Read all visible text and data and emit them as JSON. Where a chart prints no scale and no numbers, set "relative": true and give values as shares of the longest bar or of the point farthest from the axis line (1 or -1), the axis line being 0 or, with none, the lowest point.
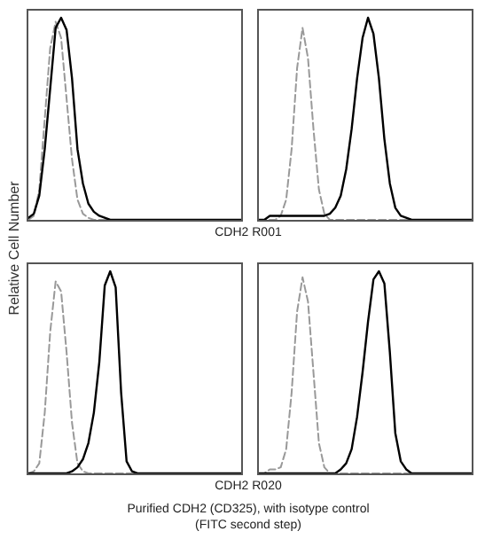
{
  "chart_data": [
    {
      "type": "line",
      "relative": true,
      "ylabel": "Relative Cell Number",
      "categories": [
        null,
        null,
        null,
        null,
        null,
        null,
        null,
        null,
        null,
        null,
        null,
        null,
        null,
        null,
        null,
        null,
        null,
        null,
        null,
        null,
        null,
        null,
        null,
        null,
        null,
        null,
        null,
        null,
        null,
        null,
        null,
        null,
        null,
        null,
        null,
        null,
        null,
        null,
        null,
        null
      ],
      "series": [
        {
          "color": "#999999",
          "line_style": "dashed",
          "values": [
            0,
            0.02,
            0.15,
            0.5,
            0.85,
            0.98,
            0.9,
            0.6,
            0.3,
            0.1,
            0.03,
            0.01,
            0,
            0,
            0,
            0,
            0,
            0,
            0,
            0,
            0,
            0,
            0,
            0,
            0,
            0,
            0,
            0,
            0,
            0,
            0,
            0,
            0,
            0,
            0,
            0,
            0,
            0,
            0,
            0
          ]
        },
        {
          "color": "#000000",
          "line_style": "solid",
          "values": [
            0.01,
            0.03,
            0.12,
            0.35,
            0.65,
            0.95,
            1,
            0.94,
            0.7,
            0.35,
            0.18,
            0.08,
            0.04,
            0.02,
            0.01,
            0,
            0,
            0,
            0,
            0,
            0,
            0,
            0,
            0,
            0,
            0,
            0,
            0,
            0,
            0,
            0,
            0,
            0,
            0,
            0,
            0,
            0,
            0,
            0,
            0
          ]
        }
      ]
    },
    {
      "type": "line",
      "relative": true,
      "xlabel": "CDH2 R001",
      "categories": [
        null,
        null,
        null,
        null,
        null,
        null,
        null,
        null,
        null,
        null,
        null,
        null,
        null,
        null,
        null,
        null,
        null,
        null,
        null,
        null,
        null,
        null,
        null,
        null,
        null,
        null,
        null,
        null,
        null,
        null,
        null,
        null,
        null,
        null,
        null,
        null,
        null,
        null,
        null,
        null
      ],
      "series": [
        {
          "color": "#999999",
          "line_style": "dashed",
          "values": [
            0,
            0,
            0,
            0,
            0.02,
            0.1,
            0.35,
            0.75,
            0.95,
            0.8,
            0.45,
            0.15,
            0.03,
            0,
            0,
            0,
            0,
            0,
            0,
            0,
            0,
            0,
            0,
            0,
            0,
            0,
            0,
            0,
            0,
            0,
            0,
            0,
            0,
            0,
            0,
            0,
            0,
            0,
            0,
            0
          ]
        },
        {
          "color": "#000000",
          "line_style": "solid",
          "values": [
            0,
            0,
            0.02,
            0.02,
            0.02,
            0.02,
            0.02,
            0.02,
            0.02,
            0.02,
            0.02,
            0.02,
            0.02,
            0.03,
            0.06,
            0.12,
            0.25,
            0.45,
            0.7,
            0.9,
            1,
            0.92,
            0.7,
            0.4,
            0.18,
            0.06,
            0.02,
            0.01,
            0,
            0,
            0,
            0,
            0,
            0,
            0,
            0,
            0,
            0,
            0,
            0
          ]
        }
      ]
    },
    {
      "type": "line",
      "relative": true,
      "categories": [
        null,
        null,
        null,
        null,
        null,
        null,
        null,
        null,
        null,
        null,
        null,
        null,
        null,
        null,
        null,
        null,
        null,
        null,
        null,
        null,
        null,
        null,
        null,
        null,
        null,
        null,
        null,
        null,
        null,
        null,
        null,
        null,
        null,
        null,
        null,
        null,
        null,
        null,
        null,
        null
      ],
      "series": [
        {
          "color": "#999999",
          "line_style": "dashed",
          "values": [
            0,
            0.01,
            0.05,
            0.3,
            0.7,
            0.95,
            0.9,
            0.6,
            0.25,
            0.05,
            0.01,
            0,
            0,
            0,
            0,
            0,
            0,
            0,
            0,
            0,
            0,
            0,
            0,
            0,
            0,
            0,
            0,
            0,
            0,
            0,
            0,
            0,
            0,
            0,
            0,
            0,
            0,
            0,
            0,
            0
          ]
        },
        {
          "color": "#000000",
          "line_style": "solid",
          "values": [
            0,
            0,
            0,
            0,
            0,
            0,
            0,
            0,
            0.01,
            0.03,
            0.07,
            0.15,
            0.3,
            0.55,
            0.93,
            1,
            0.92,
            0.4,
            0.06,
            0.01,
            0,
            0,
            0,
            0,
            0,
            0,
            0,
            0,
            0,
            0,
            0,
            0,
            0,
            0,
            0,
            0,
            0,
            0,
            0,
            0
          ]
        }
      ]
    },
    {
      "type": "line",
      "relative": true,
      "xlabel": "CDH2 R020",
      "annotations": [
        "Purified CDH2 (CD325), with isotype control",
        "(FITC second step)"
      ],
      "categories": [
        null,
        null,
        null,
        null,
        null,
        null,
        null,
        null,
        null,
        null,
        null,
        null,
        null,
        null,
        null,
        null,
        null,
        null,
        null,
        null,
        null,
        null,
        null,
        null,
        null,
        null,
        null,
        null,
        null,
        null,
        null,
        null,
        null,
        null,
        null,
        null,
        null,
        null,
        null,
        null
      ],
      "series": [
        {
          "color": "#999999",
          "line_style": "dashed",
          "values": [
            0,
            0,
            0.02,
            0.02,
            0.03,
            0.12,
            0.4,
            0.8,
            0.97,
            0.85,
            0.5,
            0.15,
            0.03,
            0,
            0,
            0,
            0,
            0,
            0,
            0,
            0,
            0,
            0,
            0,
            0,
            0,
            0,
            0,
            0,
            0,
            0,
            0,
            0,
            0,
            0,
            0,
            0,
            0,
            0,
            0
          ]
        },
        {
          "color": "#000000",
          "line_style": "solid",
          "values": [
            0,
            0,
            0,
            0,
            0,
            0,
            0,
            0,
            0,
            0,
            0,
            0,
            0,
            0,
            0,
            0.02,
            0.05,
            0.12,
            0.28,
            0.5,
            0.75,
            0.96,
            1,
            0.94,
            0.6,
            0.2,
            0.06,
            0.02,
            0,
            0,
            0,
            0,
            0,
            0,
            0,
            0,
            0,
            0,
            0,
            0
          ]
        }
      ]
    }
  ]
}
